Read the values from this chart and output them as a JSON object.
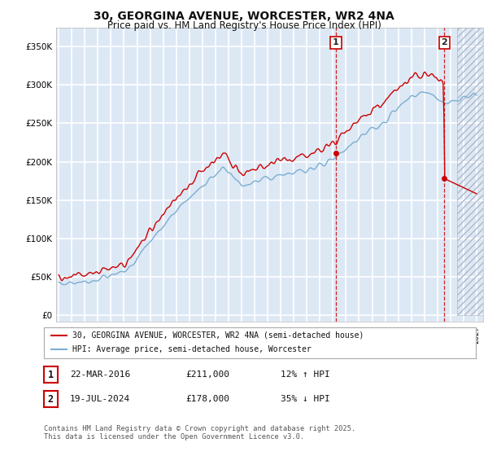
{
  "title": "30, GEORGINA AVENUE, WORCESTER, WR2 4NA",
  "subtitle": "Price paid vs. HM Land Registry's House Price Index (HPI)",
  "ylabel_ticks": [
    "£0",
    "£50K",
    "£100K",
    "£150K",
    "£200K",
    "£250K",
    "£300K",
    "£350K"
  ],
  "ytick_vals": [
    0,
    50000,
    100000,
    150000,
    200000,
    250000,
    300000,
    350000
  ],
  "ylim": [
    -8000,
    375000
  ],
  "xlim_start": 1994.8,
  "xlim_end": 2027.5,
  "background_color": "#dde8f5",
  "grid_color": "#ffffff",
  "red_line_color": "#cc0000",
  "blue_line_color": "#7aaed0",
  "marker1_date": 2016.22,
  "marker1_price": 211000,
  "marker2_date": 2024.54,
  "marker2_price": 178000,
  "legend_label_red": "30, GEORGINA AVENUE, WORCESTER, WR2 4NA (semi-detached house)",
  "legend_label_blue": "HPI: Average price, semi-detached house, Worcester",
  "table_row1": [
    "1",
    "22-MAR-2016",
    "£211,000",
    "12% ↑ HPI"
  ],
  "table_row2": [
    "2",
    "19-JUL-2024",
    "£178,000",
    "35% ↓ HPI"
  ],
  "footnote": "Contains HM Land Registry data © Crown copyright and database right 2025.\nThis data is licensed under the Open Government Licence v3.0.",
  "title_fontsize": 10,
  "subtitle_fontsize": 8.5,
  "tick_fontsize": 7.5
}
